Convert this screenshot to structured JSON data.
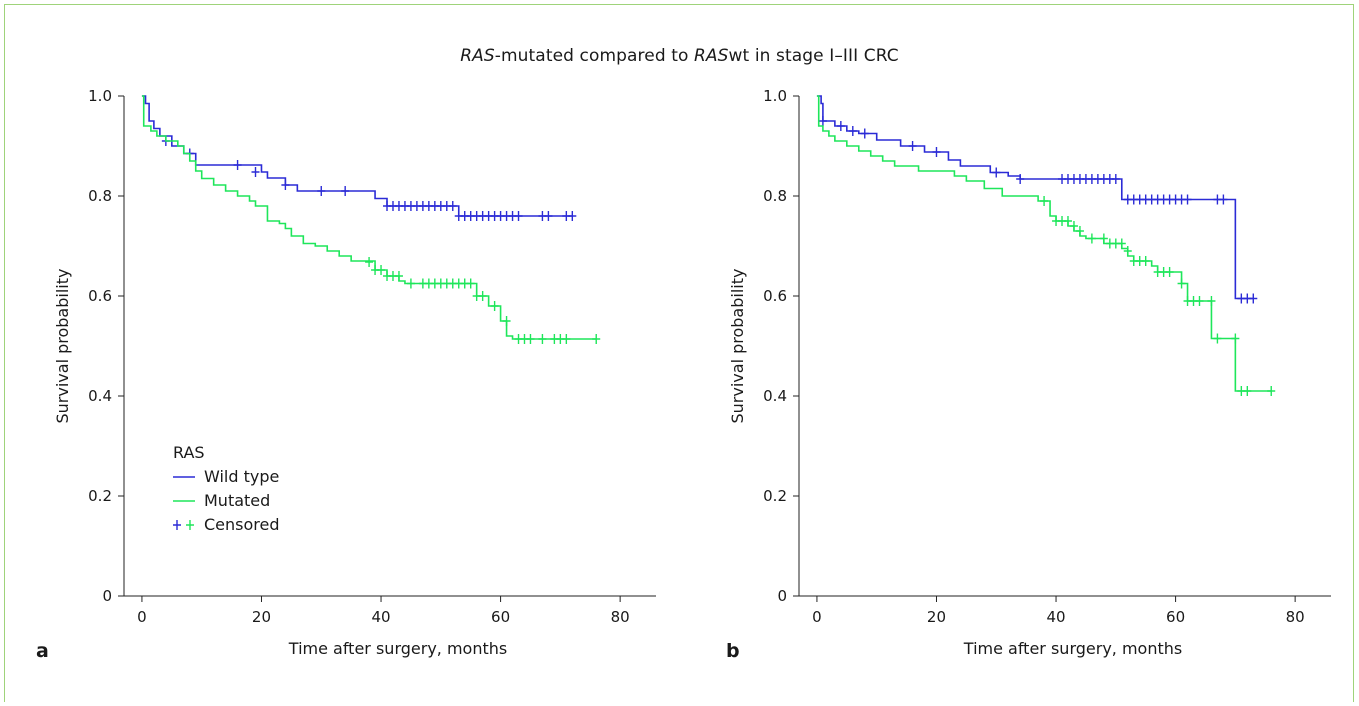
{
  "figure": {
    "title_italic_1": "RAS",
    "title_mid": "-mutated compared to ",
    "title_italic_2": "RAS",
    "title_end": "wt in stage I–III CRC",
    "frame_color": "#9fd37a"
  },
  "chart_data": [
    {
      "type": "line",
      "panel_label": "a",
      "xlabel": "Time after surgery, months",
      "ylabel": "Survival probability",
      "xlim": [
        -3,
        86
      ],
      "ylim": [
        0,
        1
      ],
      "xticks": [
        0,
        20,
        40,
        60,
        80
      ],
      "yticks": [
        0,
        0.2,
        0.4,
        0.6,
        0.8,
        1.0
      ],
      "ytick_labels": [
        "0",
        "0.2",
        "0.4",
        "0.6",
        "0.8",
        "1.0"
      ],
      "legend": {
        "title": "RAS",
        "position": "bottom-left",
        "entries": [
          "Wild type",
          "Mutated",
          "Censored"
        ]
      },
      "series": [
        {
          "name": "Wild type",
          "color": "#2b2bd6",
          "steps": [
            [
              0,
              1.0
            ],
            [
              0.6,
              0.985
            ],
            [
              1.2,
              0.95
            ],
            [
              2,
              0.935
            ],
            [
              3,
              0.92
            ],
            [
              5,
              0.9
            ],
            [
              7,
              0.885
            ],
            [
              9,
              0.862
            ],
            [
              20,
              0.848
            ],
            [
              21,
              0.836
            ],
            [
              24,
              0.822
            ],
            [
              26,
              0.81
            ],
            [
              39,
              0.795
            ],
            [
              41,
              0.78
            ],
            [
              53,
              0.76
            ],
            [
              72,
              0.76
            ]
          ],
          "censored": [
            [
              4,
              0.91
            ],
            [
              8,
              0.885
            ],
            [
              16,
              0.862
            ],
            [
              19,
              0.848
            ],
            [
              24,
              0.822
            ],
            [
              30,
              0.81
            ],
            [
              34,
              0.81
            ],
            [
              41,
              0.78
            ],
            [
              42,
              0.78
            ],
            [
              43,
              0.78
            ],
            [
              44,
              0.78
            ],
            [
              45,
              0.78
            ],
            [
              46,
              0.78
            ],
            [
              47,
              0.78
            ],
            [
              48,
              0.78
            ],
            [
              49,
              0.78
            ],
            [
              50,
              0.78
            ],
            [
              51,
              0.78
            ],
            [
              52,
              0.78
            ],
            [
              53,
              0.76
            ],
            [
              54,
              0.76
            ],
            [
              55,
              0.76
            ],
            [
              56,
              0.76
            ],
            [
              57,
              0.76
            ],
            [
              58,
              0.76
            ],
            [
              59,
              0.76
            ],
            [
              60,
              0.76
            ],
            [
              61,
              0.76
            ],
            [
              62,
              0.76
            ],
            [
              63,
              0.76
            ],
            [
              67,
              0.76
            ],
            [
              68,
              0.76
            ],
            [
              71,
              0.76
            ],
            [
              72,
              0.76
            ]
          ]
        },
        {
          "name": "Mutated",
          "color": "#1ee65a",
          "steps": [
            [
              0,
              1.0
            ],
            [
              0.3,
              0.94
            ],
            [
              1.5,
              0.93
            ],
            [
              2.5,
              0.92
            ],
            [
              4,
              0.91
            ],
            [
              6,
              0.9
            ],
            [
              7,
              0.885
            ],
            [
              8,
              0.87
            ],
            [
              9,
              0.85
            ],
            [
              10,
              0.835
            ],
            [
              12,
              0.822
            ],
            [
              14,
              0.81
            ],
            [
              16,
              0.8
            ],
            [
              18,
              0.79
            ],
            [
              19,
              0.78
            ],
            [
              21,
              0.75
            ],
            [
              23,
              0.745
            ],
            [
              24,
              0.735
            ],
            [
              25,
              0.72
            ],
            [
              27,
              0.705
            ],
            [
              29,
              0.7
            ],
            [
              31,
              0.69
            ],
            [
              33,
              0.68
            ],
            [
              35,
              0.67
            ],
            [
              39,
              0.652
            ],
            [
              41,
              0.64
            ],
            [
              43,
              0.63
            ],
            [
              44,
              0.625
            ],
            [
              56,
              0.6
            ],
            [
              58,
              0.58
            ],
            [
              60,
              0.55
            ],
            [
              61,
              0.52
            ],
            [
              62,
              0.514
            ],
            [
              76,
              0.514
            ]
          ],
          "censored": [
            [
              38,
              0.668
            ],
            [
              39,
              0.652
            ],
            [
              40,
              0.652
            ],
            [
              41,
              0.64
            ],
            [
              42,
              0.64
            ],
            [
              43,
              0.64
            ],
            [
              45,
              0.625
            ],
            [
              47,
              0.625
            ],
            [
              48,
              0.625
            ],
            [
              49,
              0.625
            ],
            [
              50,
              0.625
            ],
            [
              51,
              0.625
            ],
            [
              52,
              0.625
            ],
            [
              53,
              0.625
            ],
            [
              54,
              0.625
            ],
            [
              55,
              0.625
            ],
            [
              56,
              0.6
            ],
            [
              57,
              0.6
            ],
            [
              59,
              0.58
            ],
            [
              61,
              0.55
            ],
            [
              63,
              0.514
            ],
            [
              64,
              0.514
            ],
            [
              65,
              0.514
            ],
            [
              67,
              0.514
            ],
            [
              69,
              0.514
            ],
            [
              70,
              0.514
            ],
            [
              71,
              0.514
            ],
            [
              76,
              0.514
            ]
          ]
        }
      ]
    },
    {
      "type": "line",
      "panel_label": "b",
      "xlabel": "Time after surgery, months",
      "ylabel": "Survival probability",
      "xlim": [
        -3,
        86
      ],
      "ylim": [
        0,
        1
      ],
      "xticks": [
        0,
        20,
        40,
        60,
        80
      ],
      "yticks": [
        0,
        0.2,
        0.4,
        0.6,
        0.8,
        1.0
      ],
      "ytick_labels": [
        "0",
        "0.2",
        "0.4",
        "0.6",
        "0.8",
        "1.0"
      ],
      "series": [
        {
          "name": "Wild type",
          "color": "#2b2bd6",
          "steps": [
            [
              0,
              1.0
            ],
            [
              0.7,
              0.985
            ],
            [
              1,
              0.95
            ],
            [
              3,
              0.94
            ],
            [
              5,
              0.93
            ],
            [
              7,
              0.925
            ],
            [
              10,
              0.912
            ],
            [
              14,
              0.9
            ],
            [
              18,
              0.888
            ],
            [
              22,
              0.872
            ],
            [
              24,
              0.86
            ],
            [
              29,
              0.847
            ],
            [
              32,
              0.84
            ],
            [
              34,
              0.834
            ],
            [
              51,
              0.793
            ],
            [
              70,
              0.595
            ],
            [
              73,
              0.595
            ]
          ],
          "censored": [
            [
              1,
              0.95
            ],
            [
              4,
              0.94
            ],
            [
              6,
              0.93
            ],
            [
              8,
              0.925
            ],
            [
              16,
              0.9
            ],
            [
              20,
              0.888
            ],
            [
              30,
              0.847
            ],
            [
              34,
              0.834
            ],
            [
              41,
              0.834
            ],
            [
              42,
              0.834
            ],
            [
              43,
              0.834
            ],
            [
              44,
              0.834
            ],
            [
              45,
              0.834
            ],
            [
              46,
              0.834
            ],
            [
              47,
              0.834
            ],
            [
              48,
              0.834
            ],
            [
              49,
              0.834
            ],
            [
              50,
              0.834
            ],
            [
              52,
              0.793
            ],
            [
              53,
              0.793
            ],
            [
              54,
              0.793
            ],
            [
              55,
              0.793
            ],
            [
              56,
              0.793
            ],
            [
              57,
              0.793
            ],
            [
              58,
              0.793
            ],
            [
              59,
              0.793
            ],
            [
              60,
              0.793
            ],
            [
              61,
              0.793
            ],
            [
              62,
              0.793
            ],
            [
              67,
              0.793
            ],
            [
              68,
              0.793
            ],
            [
              71,
              0.595
            ],
            [
              72,
              0.595
            ],
            [
              73,
              0.595
            ]
          ]
        },
        {
          "name": "Mutated",
          "color": "#1ee65a",
          "steps": [
            [
              0,
              1.0
            ],
            [
              0.3,
              0.94
            ],
            [
              1,
              0.93
            ],
            [
              2,
              0.92
            ],
            [
              3,
              0.91
            ],
            [
              5,
              0.9
            ],
            [
              7,
              0.89
            ],
            [
              9,
              0.88
            ],
            [
              11,
              0.87
            ],
            [
              13,
              0.86
            ],
            [
              17,
              0.85
            ],
            [
              23,
              0.84
            ],
            [
              25,
              0.83
            ],
            [
              28,
              0.815
            ],
            [
              31,
              0.8
            ],
            [
              37,
              0.79
            ],
            [
              39,
              0.76
            ],
            [
              40,
              0.75
            ],
            [
              42,
              0.74
            ],
            [
              43,
              0.73
            ],
            [
              44,
              0.72
            ],
            [
              45,
              0.715
            ],
            [
              48,
              0.705
            ],
            [
              51,
              0.695
            ],
            [
              52,
              0.68
            ],
            [
              53,
              0.67
            ],
            [
              56,
              0.66
            ],
            [
              57,
              0.648
            ],
            [
              61,
              0.625
            ],
            [
              62,
              0.59
            ],
            [
              66,
              0.515
            ],
            [
              70,
              0.41
            ],
            [
              76,
              0.41
            ]
          ],
          "censored": [
            [
              38,
              0.79
            ],
            [
              40,
              0.75
            ],
            [
              41,
              0.75
            ],
            [
              42,
              0.75
            ],
            [
              43,
              0.74
            ],
            [
              44,
              0.73
            ],
            [
              46,
              0.715
            ],
            [
              48,
              0.715
            ],
            [
              49,
              0.705
            ],
            [
              50,
              0.705
            ],
            [
              51,
              0.705
            ],
            [
              52,
              0.69
            ],
            [
              53,
              0.67
            ],
            [
              54,
              0.67
            ],
            [
              55,
              0.67
            ],
            [
              57,
              0.648
            ],
            [
              58,
              0.648
            ],
            [
              59,
              0.648
            ],
            [
              61,
              0.625
            ],
            [
              62,
              0.59
            ],
            [
              63,
              0.59
            ],
            [
              64,
              0.59
            ],
            [
              66,
              0.59
            ],
            [
              67,
              0.515
            ],
            [
              70,
              0.515
            ],
            [
              71,
              0.41
            ],
            [
              72,
              0.41
            ],
            [
              76,
              0.41
            ]
          ]
        }
      ]
    }
  ]
}
